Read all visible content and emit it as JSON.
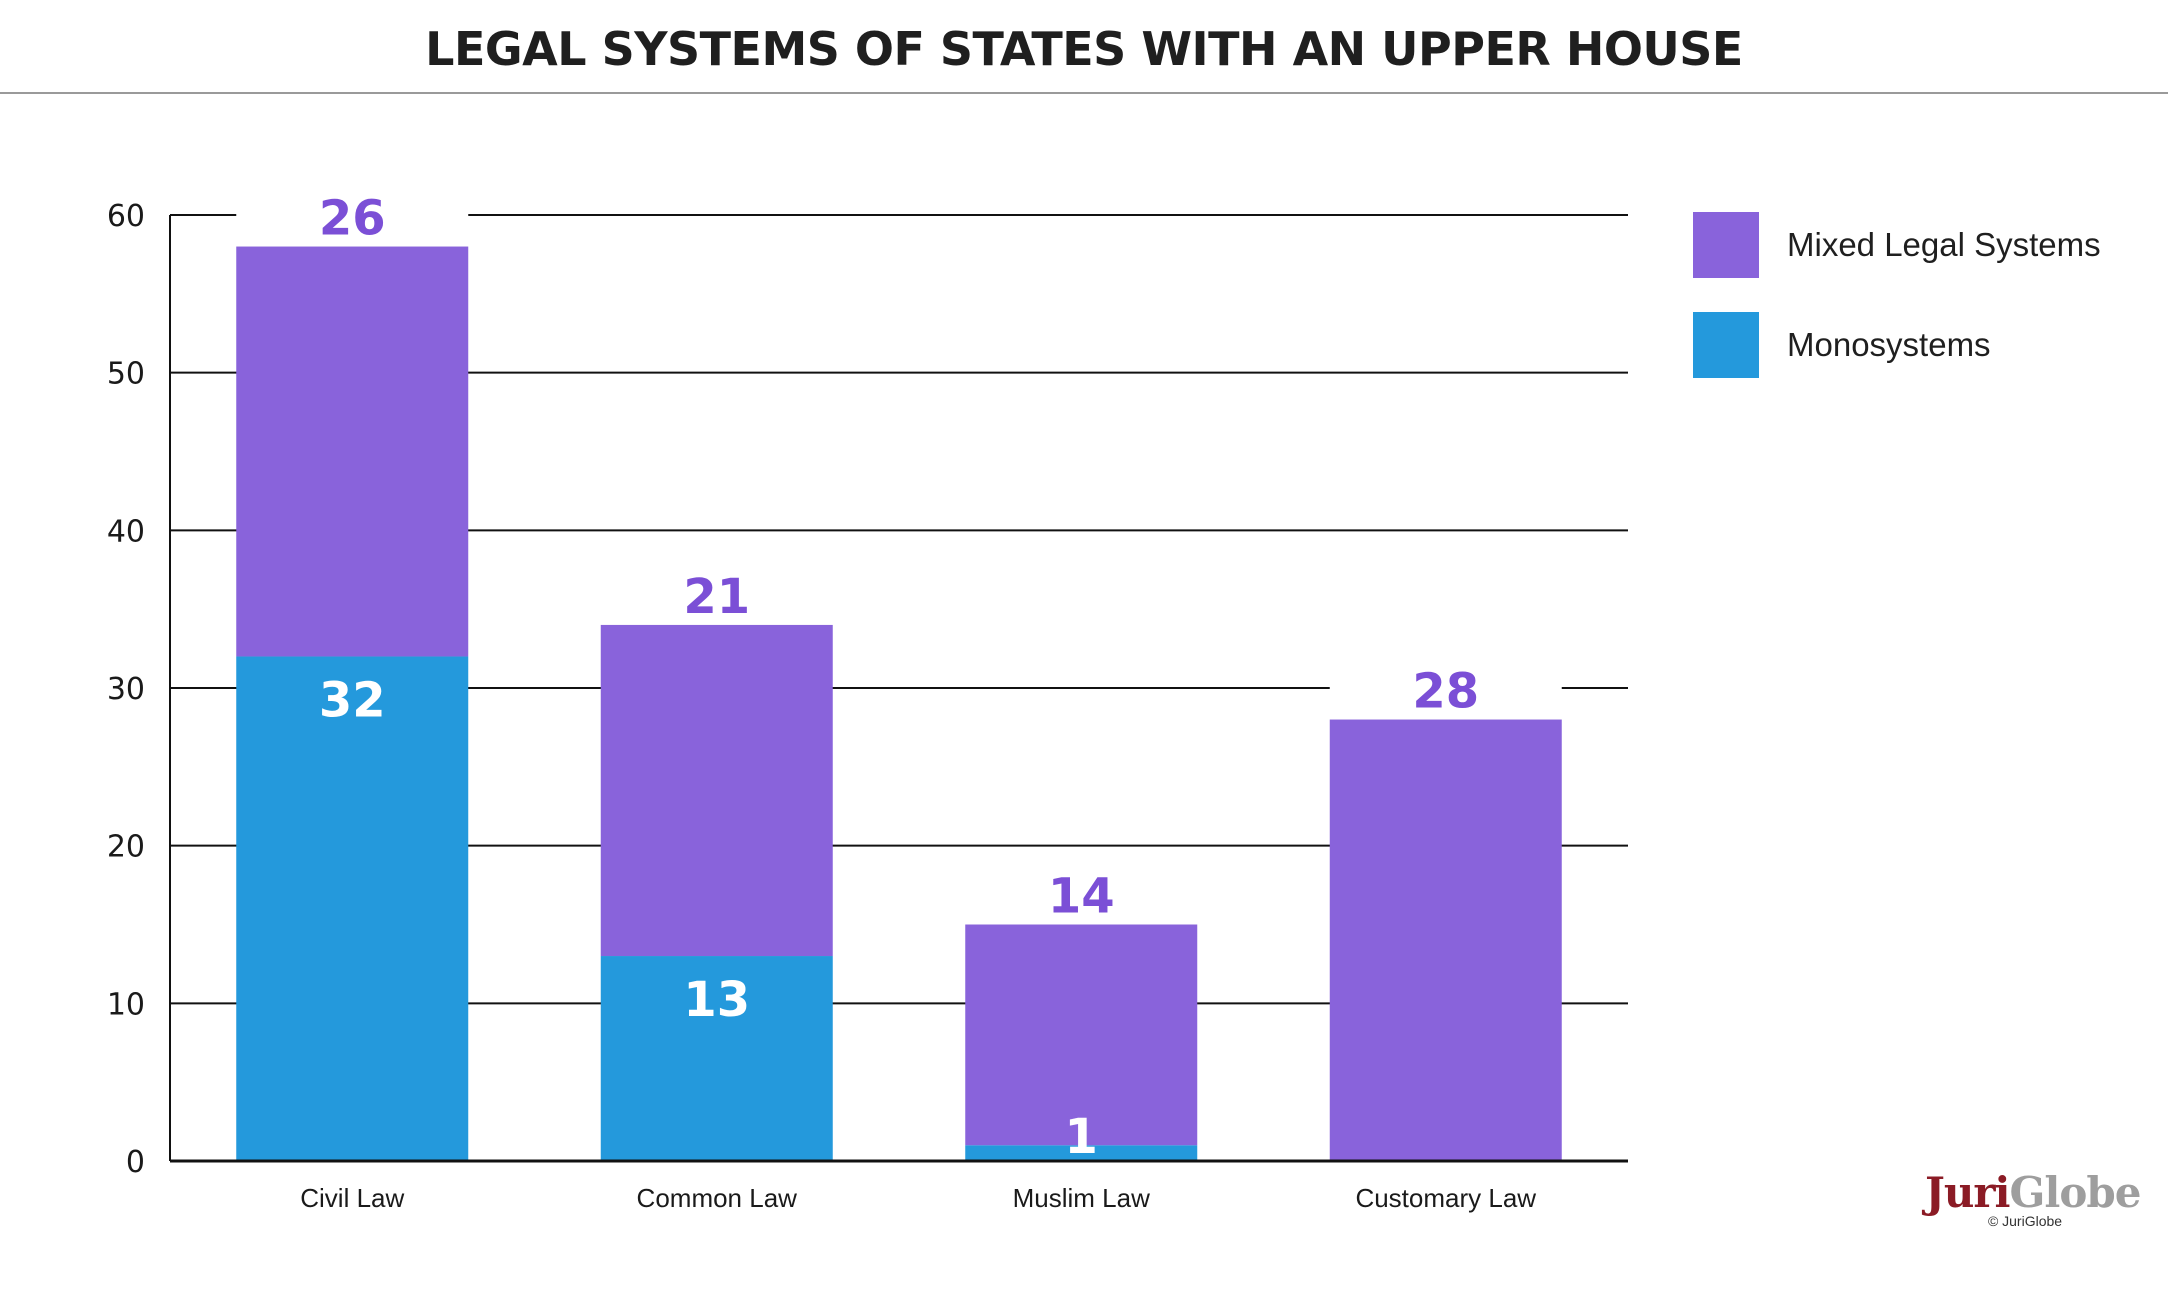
{
  "chart_data": {
    "type": "bar",
    "stacked": true,
    "title": "LEGAL SYSTEMS OF STATES WITH AN UPPER HOUSE",
    "categories": [
      "Civil Law",
      "Common Law",
      "Muslim Law",
      "Customary Law"
    ],
    "series": [
      {
        "name": "Monosystems",
        "values": [
          32,
          13,
          1,
          0
        ],
        "labels": [
          "32",
          "13",
          "1",
          ""
        ],
        "color": "#2499dc"
      },
      {
        "name": "Mixed Legal Systems",
        "values": [
          26,
          21,
          14,
          28
        ],
        "labels": [
          "26",
          "21",
          "14",
          "28"
        ],
        "color": "#8963db"
      }
    ],
    "label_color": "#7b4fd6",
    "ylim": [
      0,
      60
    ],
    "yticks": [
      0,
      10,
      20,
      30,
      40,
      50,
      60
    ],
    "grid": true,
    "legend_position": "right"
  },
  "brand": {
    "logo_part1": "Juri",
    "logo_part2": "Globe",
    "copyright": "© JuriGlobe"
  }
}
